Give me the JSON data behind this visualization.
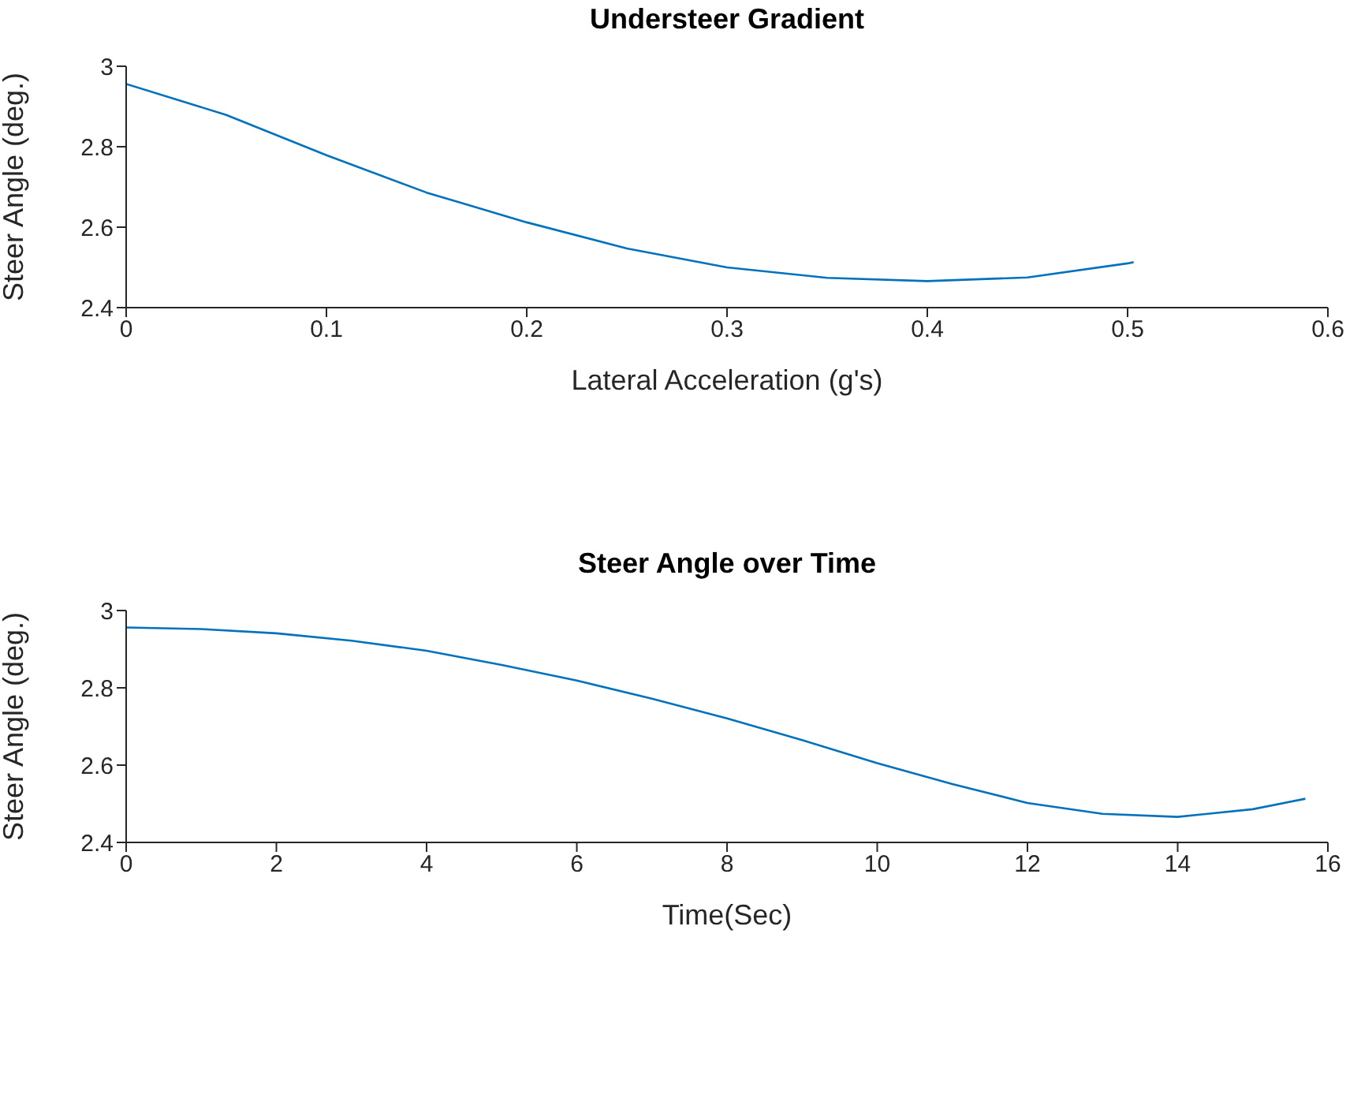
{
  "chart_data": [
    {
      "type": "line",
      "title": "Understeer Gradient",
      "xlabel": "Lateral Acceleration (g's)",
      "ylabel": "Steer Angle (deg.)",
      "xlim": [
        0,
        0.6
      ],
      "xticks": [
        0,
        0.1,
        0.2,
        0.3,
        0.4,
        0.5,
        0.6
      ],
      "ylim": [
        2.4,
        3
      ],
      "yticks": [
        2.4,
        2.6,
        2.8,
        3
      ],
      "grid": false,
      "legend": false,
      "x": [
        0,
        0.05,
        0.1,
        0.15,
        0.2,
        0.25,
        0.3,
        0.35,
        0.4,
        0.45,
        0.5,
        0.503
      ],
      "series": [
        {
          "color": "#0072bd",
          "values": [
            2.956,
            2.879,
            2.779,
            2.686,
            2.612,
            2.547,
            2.5,
            2.474,
            2.466,
            2.475,
            2.51,
            2.513
          ]
        }
      ]
    },
    {
      "type": "line",
      "title": "Steer Angle over Time",
      "xlabel": "Time(Sec)",
      "ylabel": "Steer Angle (deg.)",
      "xlim": [
        0,
        16
      ],
      "xticks": [
        0,
        2,
        4,
        6,
        8,
        10,
        12,
        14,
        16
      ],
      "ylim": [
        2.4,
        3
      ],
      "yticks": [
        2.4,
        2.6,
        2.8,
        3
      ],
      "grid": false,
      "legend": false,
      "x": [
        0,
        1,
        2,
        3,
        4,
        5,
        6,
        7,
        8,
        9,
        10,
        11,
        12,
        13,
        14,
        15,
        15.7
      ],
      "series": [
        {
          "color": "#0072bd",
          "values": [
            2.956,
            2.952,
            2.941,
            2.922,
            2.896,
            2.859,
            2.819,
            2.772,
            2.721,
            2.665,
            2.605,
            2.551,
            2.502,
            2.474,
            2.466,
            2.486,
            2.513
          ]
        }
      ]
    }
  ]
}
